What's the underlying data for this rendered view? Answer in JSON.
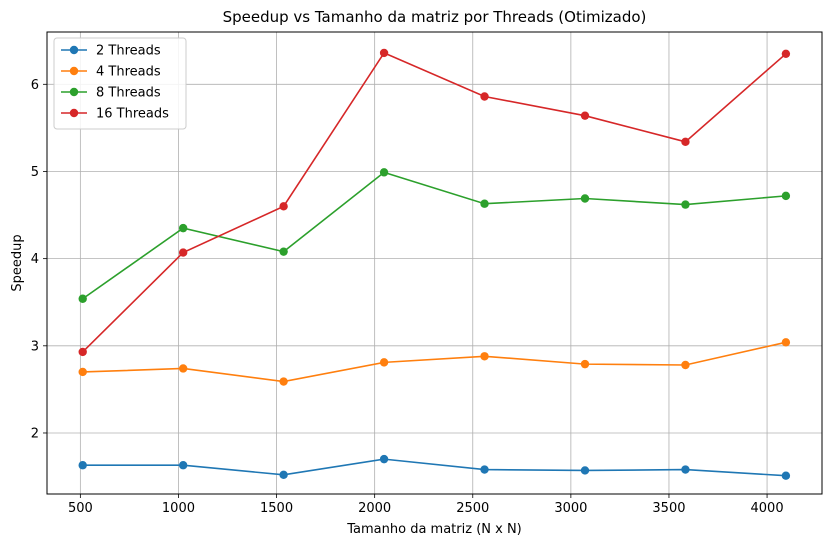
{
  "chart_data": {
    "type": "line",
    "title": "Speedup vs Tamanho da matriz por Threads (Otimizado)",
    "xlabel": "Tamanho da matriz (N x N)",
    "ylabel": "Speedup",
    "x": [
      512,
      1024,
      1536,
      2048,
      2560,
      3072,
      3584,
      4096
    ],
    "xlim": [
      330,
      4280
    ],
    "ylim": [
      1.3,
      6.6
    ],
    "xticks": [
      500,
      1000,
      1500,
      2000,
      2500,
      3000,
      3500,
      4000
    ],
    "yticks": [
      2,
      3,
      4,
      5,
      6
    ],
    "grid": true,
    "legend_position": "upper-left",
    "series": [
      {
        "name": "2 Threads",
        "color": "#1f77b4",
        "values": [
          1.63,
          1.63,
          1.52,
          1.7,
          1.58,
          1.57,
          1.58,
          1.51
        ]
      },
      {
        "name": "4 Threads",
        "color": "#ff7f0e",
        "values": [
          2.7,
          2.74,
          2.59,
          2.81,
          2.88,
          2.79,
          2.78,
          3.04
        ]
      },
      {
        "name": "8 Threads",
        "color": "#2ca02c",
        "values": [
          3.54,
          4.35,
          4.08,
          4.99,
          4.63,
          4.69,
          4.62,
          4.72
        ]
      },
      {
        "name": "16 Threads",
        "color": "#d62728",
        "values": [
          2.93,
          4.07,
          4.6,
          6.36,
          5.86,
          5.64,
          5.34,
          6.35
        ]
      }
    ]
  }
}
